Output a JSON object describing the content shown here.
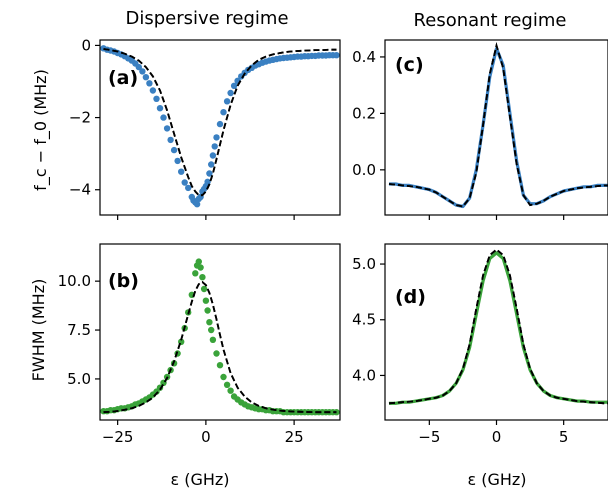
{
  "titles": {
    "left": "Dispersive regime",
    "right": "Resonant regime"
  },
  "labels": {
    "ylabel_top": "f_c − f_0 (MHz)",
    "ylabel_bottom": "FWHM (MHz)",
    "xlabel_left": "ε (GHz)",
    "xlabel_right": "ε (GHz)"
  },
  "colors": {
    "blue": "#3a80c2",
    "green": "#3aa33a",
    "fit": "#000000"
  },
  "chart_data": [
    {
      "panel": "(a)",
      "type": "scatter",
      "xlim": [
        -30,
        38
      ],
      "ylim": [
        -4.7,
        0.15
      ],
      "yticks": [
        0,
        -2,
        -4
      ],
      "ytick_labels": [
        "0",
        "−2",
        "−4"
      ],
      "xticks": [
        -25,
        0,
        25
      ],
      "series": [
        {
          "kind": "data",
          "color": "blue",
          "x": [
            -29,
            -28,
            -27,
            -26,
            -25,
            -24,
            -23,
            -22,
            -21,
            -20,
            -19,
            -18,
            -17,
            -16,
            -15,
            -14,
            -13,
            -12,
            -11,
            -10,
            -9,
            -8,
            -7,
            -6,
            -5,
            -4,
            -3.5,
            -3,
            -2.5,
            -2,
            -1.5,
            -1,
            -0.5,
            0,
            0.5,
            1,
            1.5,
            2,
            2.5,
            3,
            4,
            5,
            6,
            7,
            8,
            9,
            10,
            11,
            12,
            13,
            14,
            15,
            16,
            17,
            18,
            19,
            20,
            21,
            22,
            23,
            24,
            25,
            26,
            27,
            28,
            29,
            30,
            31,
            32,
            33,
            34,
            35,
            36,
            37
          ],
          "y": [
            -0.08,
            -0.12,
            -0.14,
            -0.17,
            -0.21,
            -0.25,
            -0.3,
            -0.36,
            -0.42,
            -0.5,
            -0.6,
            -0.72,
            -0.88,
            -1.05,
            -1.25,
            -1.48,
            -1.74,
            -2.0,
            -2.3,
            -2.62,
            -2.9,
            -3.2,
            -3.5,
            -3.8,
            -3.95,
            -4.2,
            -4.3,
            -4.35,
            -4.4,
            -4.25,
            -4.2,
            -4.05,
            -3.98,
            -3.9,
            -3.78,
            -3.55,
            -3.3,
            -3.05,
            -2.8,
            -2.55,
            -2.18,
            -1.85,
            -1.55,
            -1.32,
            -1.12,
            -0.98,
            -0.86,
            -0.76,
            -0.68,
            -0.62,
            -0.56,
            -0.52,
            -0.48,
            -0.45,
            -0.42,
            -0.4,
            -0.38,
            -0.36,
            -0.35,
            -0.34,
            -0.33,
            -0.32,
            -0.31,
            -0.31,
            -0.3,
            -0.3,
            -0.29,
            -0.29,
            -0.28,
            -0.28,
            -0.28,
            -0.27,
            -0.27,
            -0.27
          ]
        },
        {
          "kind": "fit",
          "color": "fit",
          "x": [
            -29,
            -27,
            -25,
            -23,
            -21,
            -19,
            -17,
            -15,
            -13,
            -11,
            -9,
            -7,
            -5,
            -4,
            -3,
            -2,
            -1,
            0,
            1,
            2,
            3,
            4,
            5,
            7,
            9,
            11,
            13,
            15,
            17,
            19,
            21,
            23,
            25,
            27,
            29,
            31,
            33,
            35,
            37
          ],
          "y": [
            -0.1,
            -0.13,
            -0.17,
            -0.23,
            -0.31,
            -0.42,
            -0.6,
            -0.86,
            -1.25,
            -1.8,
            -2.45,
            -3.1,
            -3.65,
            -3.9,
            -4.05,
            -4.15,
            -4.15,
            -4.05,
            -3.85,
            -3.55,
            -3.15,
            -2.75,
            -2.35,
            -1.65,
            -1.12,
            -0.78,
            -0.55,
            -0.4,
            -0.31,
            -0.25,
            -0.21,
            -0.18,
            -0.16,
            -0.15,
            -0.14,
            -0.13,
            -0.13,
            -0.12,
            -0.12
          ]
        }
      ]
    },
    {
      "panel": "(c)",
      "type": "line",
      "xlim": [
        -8.3,
        8.3
      ],
      "ylim": [
        -0.16,
        0.46
      ],
      "yticks": [
        0.4,
        0.2,
        0.0
      ],
      "ytick_labels": [
        "0.4",
        "0.2",
        "0.0"
      ],
      "xticks": [
        -5,
        0,
        5
      ],
      "series": [
        {
          "kind": "data",
          "color": "blue",
          "x": [
            -8,
            -7.5,
            -7,
            -6.5,
            -6,
            -5.5,
            -5,
            -4.5,
            -4,
            -3.5,
            -3,
            -2.5,
            -2,
            -1.5,
            -1,
            -0.5,
            0,
            0.5,
            1,
            1.5,
            2,
            2.5,
            3,
            3.5,
            4,
            4.5,
            5,
            5.5,
            6,
            6.5,
            7,
            7.5,
            8,
            8.3
          ],
          "y": [
            -0.05,
            -0.05,
            -0.055,
            -0.055,
            -0.06,
            -0.065,
            -0.07,
            -0.08,
            -0.095,
            -0.11,
            -0.125,
            -0.13,
            -0.1,
            0.0,
            0.16,
            0.33,
            0.43,
            0.37,
            0.2,
            0.03,
            -0.09,
            -0.12,
            -0.12,
            -0.11,
            -0.095,
            -0.085,
            -0.075,
            -0.07,
            -0.065,
            -0.06,
            -0.06,
            -0.055,
            -0.055,
            -0.055
          ]
        },
        {
          "kind": "fit",
          "color": "fit",
          "x": [
            -8,
            -7,
            -6,
            -5,
            -4.5,
            -4,
            -3.5,
            -3,
            -2.5,
            -2,
            -1.5,
            -1,
            -0.5,
            0,
            0.5,
            1,
            1.5,
            2,
            2.5,
            3,
            3.5,
            4,
            5,
            6,
            7,
            8,
            8.3
          ],
          "y": [
            -0.05,
            -0.055,
            -0.06,
            -0.07,
            -0.08,
            -0.095,
            -0.11,
            -0.125,
            -0.13,
            -0.1,
            -0.01,
            0.16,
            0.34,
            0.44,
            0.36,
            0.19,
            0.02,
            -0.09,
            -0.125,
            -0.12,
            -0.11,
            -0.095,
            -0.075,
            -0.065,
            -0.06,
            -0.055,
            -0.055
          ]
        }
      ]
    },
    {
      "panel": "(b)",
      "type": "scatter",
      "xlim": [
        -30,
        38
      ],
      "ylim": [
        2.9,
        11.9
      ],
      "yticks": [
        10.0,
        7.5,
        5.0
      ],
      "ytick_labels": [
        "10.0",
        "7.5",
        "5.0"
      ],
      "xticks": [
        -25,
        0,
        25
      ],
      "xtick_labels": [
        "−25",
        "0",
        "25"
      ],
      "series": [
        {
          "kind": "data",
          "color": "green",
          "x": [
            -29,
            -28,
            -27,
            -26,
            -25,
            -24,
            -23,
            -22,
            -21,
            -20,
            -19,
            -18,
            -17,
            -16,
            -15,
            -14,
            -13,
            -12,
            -11,
            -10,
            -9,
            -8,
            -7,
            -6,
            -5,
            -4,
            -3,
            -2.5,
            -2,
            -1.5,
            -1,
            -0.5,
            0,
            0.5,
            1,
            1.5,
            2,
            3,
            4,
            5,
            6,
            7,
            8,
            9,
            10,
            11,
            12,
            13,
            14,
            15,
            16,
            17,
            18,
            19,
            20,
            21,
            22,
            23,
            24,
            25,
            26,
            27,
            28,
            29,
            30,
            31,
            32,
            33,
            34,
            35,
            36,
            37
          ],
          "y": [
            3.35,
            3.35,
            3.4,
            3.4,
            3.45,
            3.5,
            3.5,
            3.55,
            3.6,
            3.7,
            3.75,
            3.85,
            3.95,
            4.05,
            4.2,
            4.35,
            4.55,
            4.8,
            5.1,
            5.45,
            5.8,
            6.3,
            6.9,
            7.6,
            8.4,
            9.3,
            10.4,
            10.8,
            11.0,
            10.7,
            10.2,
            9.6,
            9.0,
            8.5,
            7.9,
            7.5,
            7.0,
            6.3,
            5.7,
            5.1,
            4.7,
            4.4,
            4.1,
            3.95,
            3.8,
            3.7,
            3.6,
            3.55,
            3.5,
            3.45,
            3.45,
            3.4,
            3.4,
            3.35,
            3.35,
            3.35,
            3.3,
            3.3,
            3.3,
            3.3,
            3.3,
            3.3,
            3.3,
            3.3,
            3.3,
            3.3,
            3.3,
            3.3,
            3.3,
            3.3,
            3.3,
            3.3
          ]
        },
        {
          "kind": "fit",
          "color": "fit",
          "x": [
            -29,
            -27,
            -25,
            -23,
            -21,
            -19,
            -17,
            -15,
            -13,
            -11,
            -9,
            -7,
            -5,
            -4,
            -3,
            -2,
            -1,
            0,
            1,
            2,
            3,
            4,
            5,
            7,
            9,
            11,
            13,
            15,
            17,
            19,
            21,
            23,
            25,
            27,
            29,
            31,
            33,
            35,
            37
          ],
          "y": [
            3.3,
            3.32,
            3.36,
            3.42,
            3.5,
            3.62,
            3.8,
            4.05,
            4.45,
            5.05,
            5.9,
            7.0,
            8.3,
            8.95,
            9.5,
            9.85,
            9.95,
            9.8,
            9.4,
            8.8,
            8.05,
            7.25,
            6.5,
            5.3,
            4.55,
            4.1,
            3.8,
            3.62,
            3.5,
            3.43,
            3.38,
            3.35,
            3.33,
            3.32,
            3.31,
            3.3,
            3.3,
            3.3,
            3.3
          ]
        }
      ]
    },
    {
      "panel": "(d)",
      "type": "line",
      "xlim": [
        -8.3,
        8.3
      ],
      "ylim": [
        3.6,
        5.18
      ],
      "yticks": [
        5.0,
        4.5,
        4.0
      ],
      "ytick_labels": [
        "5.0",
        "4.5",
        "4.0"
      ],
      "xticks": [
        -5,
        0,
        5
      ],
      "xtick_labels": [
        "−5",
        "0",
        "5"
      ],
      "series": [
        {
          "kind": "data",
          "color": "green",
          "x": [
            -8,
            -7.5,
            -7,
            -6.5,
            -6,
            -5.5,
            -5,
            -4.5,
            -4,
            -3.5,
            -3,
            -2.5,
            -2,
            -1.5,
            -1,
            -0.5,
            0,
            0.5,
            1,
            1.5,
            2,
            2.5,
            3,
            3.5,
            4,
            4.5,
            5,
            5.5,
            6,
            6.5,
            7,
            7.5,
            8,
            8.3
          ],
          "y": [
            3.75,
            3.75,
            3.76,
            3.76,
            3.77,
            3.78,
            3.79,
            3.8,
            3.82,
            3.86,
            3.93,
            4.05,
            4.25,
            4.55,
            4.85,
            5.05,
            5.1,
            5.05,
            4.85,
            4.55,
            4.25,
            4.05,
            3.93,
            3.86,
            3.82,
            3.8,
            3.79,
            3.78,
            3.77,
            3.77,
            3.76,
            3.76,
            3.76,
            3.76
          ]
        },
        {
          "kind": "fit",
          "color": "fit",
          "x": [
            -8,
            -7,
            -6,
            -5,
            -4.5,
            -4,
            -3.5,
            -3,
            -2.5,
            -2,
            -1.5,
            -1,
            -0.5,
            0,
            0.5,
            1,
            1.5,
            2,
            2.5,
            3,
            3.5,
            4,
            4.5,
            5,
            6,
            7,
            8,
            8.3
          ],
          "y": [
            3.75,
            3.76,
            3.77,
            3.79,
            3.8,
            3.82,
            3.86,
            3.93,
            4.06,
            4.28,
            4.6,
            4.9,
            5.08,
            5.13,
            5.08,
            4.9,
            4.6,
            4.28,
            4.06,
            3.93,
            3.86,
            3.82,
            3.8,
            3.79,
            3.77,
            3.76,
            3.75,
            3.75
          ]
        }
      ]
    }
  ]
}
